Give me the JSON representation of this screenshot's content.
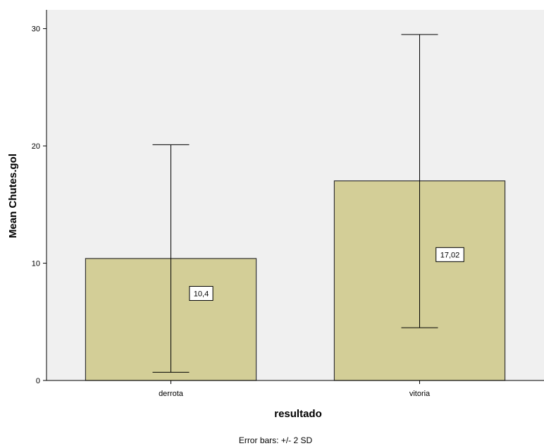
{
  "chart_data": {
    "type": "bar",
    "categories": [
      "derrota",
      "vitoria"
    ],
    "values": [
      10.4,
      17.02
    ],
    "value_labels": [
      "10,4",
      "17,02"
    ],
    "error_bars": {
      "lower": [
        0.7,
        4.5
      ],
      "upper": [
        20.1,
        29.5
      ]
    },
    "xlabel": "resultado",
    "ylabel": "Mean Chutes.gol",
    "ylim": [
      0,
      31.6
    ],
    "yticks": [
      0,
      10,
      20,
      30
    ],
    "grid": false,
    "footnote": "Error bars: +/- 2 SD",
    "colors": {
      "plot_background": "#f0f0f0",
      "bar_fill": "#d3ce97",
      "bar_stroke": "#333333",
      "axis": "#000000"
    }
  }
}
